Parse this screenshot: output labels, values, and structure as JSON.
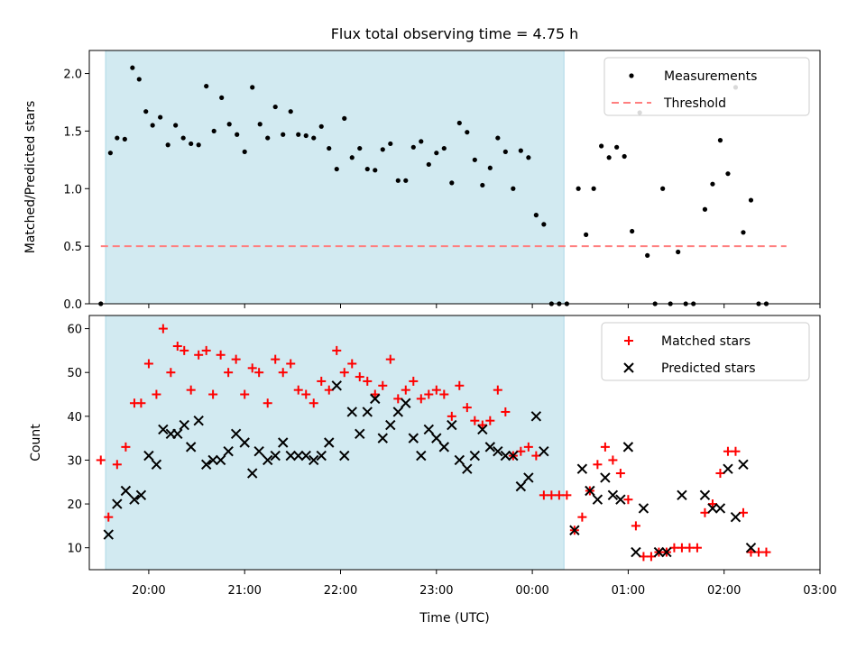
{
  "title": "Flux total observing time = 4.75 h",
  "xlabel": "Time (UTC)",
  "xticks": [
    "20:00",
    "21:00",
    "22:00",
    "23:00",
    "00:00",
    "01:00",
    "02:00",
    "03:00"
  ],
  "colors": {
    "shade": "#add8e6",
    "measurements": "#000000",
    "threshold": "#ff7f7f",
    "matched": "#ff0000",
    "predicted": "#000000"
  },
  "chart_data": [
    {
      "type": "scatter",
      "ylabel": "Matched/Predicted stars",
      "ylim": [
        0,
        2.2
      ],
      "yticks": [
        "0.0",
        "0.5",
        "1.0",
        "1.5",
        "2.0"
      ],
      "x_units": "hours after 19:00 UTC",
      "xlim": [
        19.38,
        27.0
      ],
      "shaded_interval": [
        19.55,
        24.33
      ],
      "threshold": 0.5,
      "legend": {
        "placement": "upper right",
        "entries": [
          "Measurements",
          "Threshold"
        ]
      },
      "series": [
        {
          "name": "Measurements",
          "points": [
            [
              19.5,
              0.0
            ],
            [
              19.6,
              1.31
            ],
            [
              19.67,
              1.44
            ],
            [
              19.75,
              1.43
            ],
            [
              19.83,
              2.05
            ],
            [
              19.9,
              1.95
            ],
            [
              19.97,
              1.67
            ],
            [
              20.04,
              1.55
            ],
            [
              20.12,
              1.62
            ],
            [
              20.2,
              1.38
            ],
            [
              20.28,
              1.55
            ],
            [
              20.36,
              1.44
            ],
            [
              20.44,
              1.39
            ],
            [
              20.52,
              1.38
            ],
            [
              20.6,
              1.89
            ],
            [
              20.68,
              1.5
            ],
            [
              20.76,
              1.79
            ],
            [
              20.84,
              1.56
            ],
            [
              20.92,
              1.47
            ],
            [
              21.0,
              1.32
            ],
            [
              21.08,
              1.88
            ],
            [
              21.16,
              1.56
            ],
            [
              21.24,
              1.44
            ],
            [
              21.32,
              1.71
            ],
            [
              21.4,
              1.47
            ],
            [
              21.48,
              1.67
            ],
            [
              21.56,
              1.47
            ],
            [
              21.64,
              1.46
            ],
            [
              21.72,
              1.44
            ],
            [
              21.8,
              1.54
            ],
            [
              21.88,
              1.35
            ],
            [
              21.96,
              1.17
            ],
            [
              22.04,
              1.61
            ],
            [
              22.12,
              1.27
            ],
            [
              22.2,
              1.35
            ],
            [
              22.28,
              1.17
            ],
            [
              22.36,
              1.16
            ],
            [
              22.44,
              1.34
            ],
            [
              22.52,
              1.39
            ],
            [
              22.6,
              1.07
            ],
            [
              22.68,
              1.07
            ],
            [
              22.76,
              1.36
            ],
            [
              22.84,
              1.41
            ],
            [
              22.92,
              1.21
            ],
            [
              23.0,
              1.31
            ],
            [
              23.08,
              1.35
            ],
            [
              23.16,
              1.05
            ],
            [
              23.24,
              1.57
            ],
            [
              23.32,
              1.49
            ],
            [
              23.4,
              1.25
            ],
            [
              23.48,
              1.03
            ],
            [
              23.56,
              1.18
            ],
            [
              23.64,
              1.44
            ],
            [
              23.72,
              1.32
            ],
            [
              23.8,
              1.0
            ],
            [
              23.88,
              1.33
            ],
            [
              23.96,
              1.27
            ],
            [
              24.04,
              0.77
            ],
            [
              24.12,
              0.69
            ],
            [
              24.2,
              0.0
            ],
            [
              24.28,
              0.0
            ],
            [
              24.36,
              0.0
            ],
            [
              24.48,
              1.0
            ],
            [
              24.56,
              0.6
            ],
            [
              24.64,
              1.0
            ],
            [
              24.72,
              1.37
            ],
            [
              24.8,
              1.27
            ],
            [
              24.88,
              1.36
            ],
            [
              24.96,
              1.28
            ],
            [
              25.04,
              0.63
            ],
            [
              25.12,
              1.66
            ],
            [
              25.2,
              0.42
            ],
            [
              25.28,
              0.0
            ],
            [
              25.36,
              1.0
            ],
            [
              25.44,
              0.0
            ],
            [
              25.52,
              0.45
            ],
            [
              25.6,
              0.0
            ],
            [
              25.68,
              0.0
            ],
            [
              25.8,
              0.82
            ],
            [
              25.88,
              1.04
            ],
            [
              25.96,
              1.42
            ],
            [
              26.04,
              1.13
            ],
            [
              26.12,
              1.88
            ],
            [
              26.2,
              0.62
            ],
            [
              26.28,
              0.9
            ],
            [
              26.36,
              0.0
            ],
            [
              26.44,
              0.0
            ]
          ]
        },
        {
          "name": "Threshold",
          "style": "dashed",
          "points": [
            [
              19.5,
              0.5
            ],
            [
              26.65,
              0.5
            ]
          ]
        }
      ]
    },
    {
      "type": "scatter",
      "ylabel": "Count",
      "ylim": [
        5,
        63
      ],
      "yticks": [
        "10",
        "20",
        "30",
        "40",
        "50",
        "60"
      ],
      "x_units": "hours after 19:00 UTC",
      "xlim": [
        19.38,
        27.0
      ],
      "shaded_interval": [
        19.55,
        24.33
      ],
      "legend": {
        "placement": "upper right",
        "entries": [
          "Matched stars",
          "Predicted stars"
        ]
      },
      "series": [
        {
          "name": "Matched stars",
          "marker": "+",
          "points": [
            [
              19.5,
              30
            ],
            [
              19.58,
              17
            ],
            [
              19.67,
              29
            ],
            [
              19.76,
              33
            ],
            [
              19.85,
              43
            ],
            [
              19.92,
              43
            ],
            [
              20.0,
              52
            ],
            [
              20.08,
              45
            ],
            [
              20.15,
              60
            ],
            [
              20.23,
              50
            ],
            [
              20.3,
              56
            ],
            [
              20.37,
              55
            ],
            [
              20.44,
              46
            ],
            [
              20.52,
              54
            ],
            [
              20.6,
              55
            ],
            [
              20.67,
              45
            ],
            [
              20.75,
              54
            ],
            [
              20.83,
              50
            ],
            [
              20.91,
              53
            ],
            [
              21.0,
              45
            ],
            [
              21.08,
              51
            ],
            [
              21.15,
              50
            ],
            [
              21.24,
              43
            ],
            [
              21.32,
              53
            ],
            [
              21.4,
              50
            ],
            [
              21.48,
              52
            ],
            [
              21.56,
              46
            ],
            [
              21.64,
              45
            ],
            [
              21.72,
              43
            ],
            [
              21.8,
              48
            ],
            [
              21.88,
              46
            ],
            [
              21.96,
              55
            ],
            [
              22.04,
              50
            ],
            [
              22.12,
              52
            ],
            [
              22.2,
              49
            ],
            [
              22.28,
              48
            ],
            [
              22.36,
              45
            ],
            [
              22.44,
              47
            ],
            [
              22.52,
              53
            ],
            [
              22.6,
              44
            ],
            [
              22.68,
              46
            ],
            [
              22.76,
              48
            ],
            [
              22.84,
              44
            ],
            [
              22.92,
              45
            ],
            [
              23.0,
              46
            ],
            [
              23.08,
              45
            ],
            [
              23.16,
              40
            ],
            [
              23.24,
              47
            ],
            [
              23.32,
              42
            ],
            [
              23.4,
              39
            ],
            [
              23.48,
              38
            ],
            [
              23.56,
              39
            ],
            [
              23.64,
              46
            ],
            [
              23.72,
              41
            ],
            [
              23.8,
              31
            ],
            [
              23.88,
              32
            ],
            [
              23.96,
              33
            ],
            [
              24.04,
              31
            ],
            [
              24.12,
              22
            ],
            [
              24.2,
              22
            ],
            [
              24.28,
              22
            ],
            [
              24.36,
              22
            ],
            [
              24.44,
              14
            ],
            [
              24.52,
              17
            ],
            [
              24.6,
              23
            ],
            [
              24.68,
              29
            ],
            [
              24.76,
              33
            ],
            [
              24.84,
              30
            ],
            [
              24.92,
              27
            ],
            [
              25.0,
              21
            ],
            [
              25.08,
              15
            ],
            [
              25.16,
              8
            ],
            [
              25.24,
              8
            ],
            [
              25.32,
              9
            ],
            [
              25.4,
              9
            ],
            [
              25.48,
              10
            ],
            [
              25.56,
              10
            ],
            [
              25.64,
              10
            ],
            [
              25.72,
              10
            ],
            [
              25.8,
              18
            ],
            [
              25.88,
              20
            ],
            [
              25.96,
              27
            ],
            [
              26.04,
              32
            ],
            [
              26.12,
              32
            ],
            [
              26.2,
              18
            ],
            [
              26.28,
              9
            ],
            [
              26.36,
              9
            ],
            [
              26.44,
              9
            ]
          ]
        },
        {
          "name": "Predicted stars",
          "marker": "x",
          "points": [
            [
              19.58,
              13
            ],
            [
              19.67,
              20
            ],
            [
              19.76,
              23
            ],
            [
              19.85,
              21
            ],
            [
              19.92,
              22
            ],
            [
              20.0,
              31
            ],
            [
              20.08,
              29
            ],
            [
              20.15,
              37
            ],
            [
              20.23,
              36
            ],
            [
              20.3,
              36
            ],
            [
              20.37,
              38
            ],
            [
              20.44,
              33
            ],
            [
              20.52,
              39
            ],
            [
              20.6,
              29
            ],
            [
              20.67,
              30
            ],
            [
              20.75,
              30
            ],
            [
              20.83,
              32
            ],
            [
              20.91,
              36
            ],
            [
              21.0,
              34
            ],
            [
              21.08,
              27
            ],
            [
              21.15,
              32
            ],
            [
              21.24,
              30
            ],
            [
              21.32,
              31
            ],
            [
              21.4,
              34
            ],
            [
              21.48,
              31
            ],
            [
              21.56,
              31
            ],
            [
              21.64,
              31
            ],
            [
              21.72,
              30
            ],
            [
              21.8,
              31
            ],
            [
              21.88,
              34
            ],
            [
              21.96,
              47
            ],
            [
              22.04,
              31
            ],
            [
              22.12,
              41
            ],
            [
              22.2,
              36
            ],
            [
              22.28,
              41
            ],
            [
              22.36,
              44
            ],
            [
              22.44,
              35
            ],
            [
              22.52,
              38
            ],
            [
              22.6,
              41
            ],
            [
              22.68,
              43
            ],
            [
              22.76,
              35
            ],
            [
              22.84,
              31
            ],
            [
              22.92,
              37
            ],
            [
              23.0,
              35
            ],
            [
              23.08,
              33
            ],
            [
              23.16,
              38
            ],
            [
              23.24,
              30
            ],
            [
              23.32,
              28
            ],
            [
              23.4,
              31
            ],
            [
              23.48,
              37
            ],
            [
              23.56,
              33
            ],
            [
              23.64,
              32
            ],
            [
              23.72,
              31
            ],
            [
              23.8,
              31
            ],
            [
              23.88,
              24
            ],
            [
              23.96,
              26
            ],
            [
              24.04,
              40
            ],
            [
              24.12,
              32
            ],
            [
              24.44,
              14
            ],
            [
              24.52,
              28
            ],
            [
              24.6,
              23
            ],
            [
              24.68,
              21
            ],
            [
              24.76,
              26
            ],
            [
              24.84,
              22
            ],
            [
              24.92,
              21
            ],
            [
              25.0,
              33
            ],
            [
              25.08,
              9
            ],
            [
              25.16,
              19
            ],
            [
              25.32,
              9
            ],
            [
              25.4,
              9
            ],
            [
              25.56,
              22
            ],
            [
              25.8,
              22
            ],
            [
              25.88,
              19
            ],
            [
              25.96,
              19
            ],
            [
              26.04,
              28
            ],
            [
              26.12,
              17
            ],
            [
              26.2,
              29
            ],
            [
              26.28,
              10
            ]
          ]
        }
      ]
    }
  ]
}
